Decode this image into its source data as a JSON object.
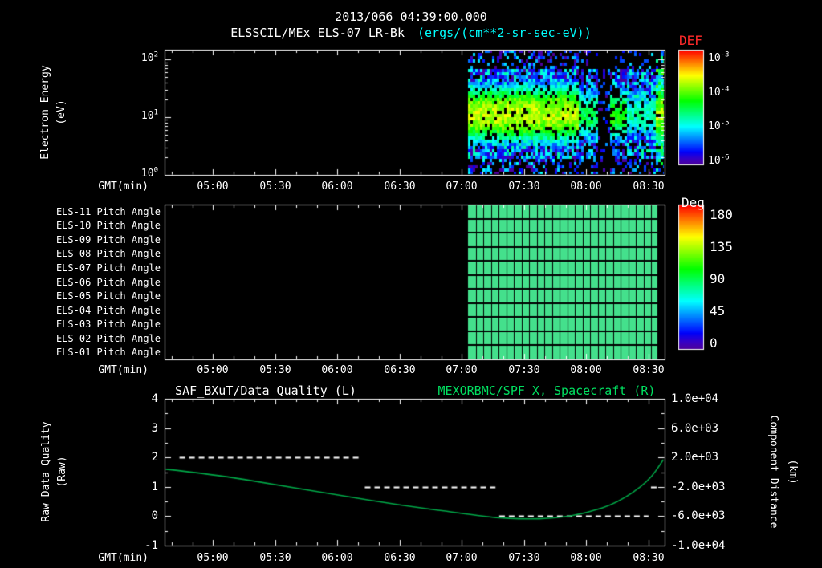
{
  "header": {
    "title": "2013/066 04:39:00.000",
    "instrument": "ELSSCIL/MEx ELS-07 LR-Bk",
    "units": "(ergs/(cm**2-sr-sec-eV))"
  },
  "colors": {
    "background": "#000000",
    "foreground": "#ffffff",
    "units_text": "#00ffff",
    "def_label": "#ff2a2a",
    "right_title": "#00e060",
    "orbit_line": "#00a848",
    "quality_line": "#ffffff",
    "pitch_cell": "#44e08c"
  },
  "time_axis": {
    "label": "GMT(min)",
    "domain_hours": [
      4.61,
      8.63
    ],
    "ticks": [
      {
        "label": "05:00",
        "hour": 5.0
      },
      {
        "label": "05:30",
        "hour": 5.5
      },
      {
        "label": "06:00",
        "hour": 6.0
      },
      {
        "label": "06:30",
        "hour": 6.5
      },
      {
        "label": "07:00",
        "hour": 7.0
      },
      {
        "label": "07:30",
        "hour": 7.5
      },
      {
        "label": "08:00",
        "hour": 8.0
      },
      {
        "label": "08:30",
        "hour": 8.5
      }
    ]
  },
  "chart_data": [
    {
      "type": "heatmap",
      "name": "electron-energy-spectrogram",
      "ylabel": "Electron Energy",
      "ylabel_units": "(eV)",
      "y_scale": "log",
      "y_decades": [
        0,
        2.17
      ],
      "yticks": [
        {
          "label": "10^0",
          "log": 0
        },
        {
          "label": "10^1",
          "log": 1
        },
        {
          "label": "10^2",
          "log": 2
        }
      ],
      "colorbar": {
        "label": "DEF",
        "range_log": [
          -6,
          -3
        ],
        "ticks": [
          {
            "label": "10^-3",
            "log": -3
          },
          {
            "label": "10^-4",
            "log": -4
          },
          {
            "label": "10^-5",
            "log": -5
          },
          {
            "label": "10^-6",
            "log": -6
          }
        ]
      },
      "data_start_hour": 7.05,
      "band": {
        "center_log_ev": 1.05,
        "width_log": 0.45
      },
      "segments": [
        {
          "t0": 7.05,
          "t1": 7.93,
          "band_peak_log": -3.85,
          "bg_log": -5.35,
          "fill": 0.95
        },
        {
          "t0": 7.93,
          "t1": 8.1,
          "band_peak_log": -4.55,
          "bg_log": -5.5,
          "fill": 0.8
        },
        {
          "t0": 8.1,
          "t1": 8.2,
          "band_peak_log": -6.3,
          "bg_log": -5.9,
          "fill": 0.3
        },
        {
          "t0": 8.2,
          "t1": 8.33,
          "band_peak_log": -4.3,
          "bg_log": -5.55,
          "fill": 0.7
        },
        {
          "t0": 8.33,
          "t1": 8.55,
          "band_peak_log": -4.8,
          "bg_log": -5.35,
          "fill": 0.85
        },
        {
          "t0": 8.55,
          "t1": 8.63,
          "band_peak_log": -3.9,
          "bg_log": -4.7,
          "fill": 1.0
        }
      ]
    },
    {
      "type": "heatmap",
      "name": "pitch-angle-panel",
      "rows": [
        "ELS-11 Pitch Angle",
        "ELS-10 Pitch Angle",
        "ELS-09 Pitch Angle",
        "ELS-08 Pitch Angle",
        "ELS-07 Pitch Angle",
        "ELS-06 Pitch Angle",
        "ELS-05 Pitch Angle",
        "ELS-04 Pitch Angle",
        "ELS-03 Pitch Angle",
        "ELS-02 Pitch Angle",
        "ELS-01 Pitch Angle"
      ],
      "value_deg": 95,
      "data_start_hour": 7.05,
      "data_end_hour": 8.57,
      "colorbar": {
        "label": "Deg",
        "range": [
          0,
          180
        ],
        "ticks": [
          {
            "label": "180",
            "v": 180
          },
          {
            "label": "135",
            "v": 135
          },
          {
            "label": "90",
            "v": 90
          },
          {
            "label": "45",
            "v": 45
          },
          {
            "label": "0",
            "v": 0
          }
        ]
      }
    },
    {
      "type": "line",
      "name": "quality-and-orbit",
      "title_left": "SAF_BXuT/Data Quality (L)",
      "title_right": "MEXORBMC/SPF X, Spacecraft (R)",
      "ylabel_left": "Raw Data Quality",
      "ylabel_left_units": "(Raw)",
      "ylabel_right": "Component Distance",
      "ylabel_right_units": "(km)",
      "ylim_left": [
        -1,
        4
      ],
      "ylim_right": [
        -10000,
        10000
      ],
      "yticks_left": [
        {
          "label": "4",
          "v": 4
        },
        {
          "label": "3",
          "v": 3
        },
        {
          "label": "2",
          "v": 2
        },
        {
          "label": "1",
          "v": 1
        },
        {
          "label": "0",
          "v": 0
        },
        {
          "label": "-1",
          "v": -1
        }
      ],
      "yticks_right": [
        {
          "label": "1.0e+04",
          "v": 10000
        },
        {
          "label": "6.0e+03",
          "v": 6000
        },
        {
          "label": "2.0e+03",
          "v": 2000
        },
        {
          "label": "-2.0e+03",
          "v": -2000
        },
        {
          "label": "-6.0e+03",
          "v": -6000
        },
        {
          "label": "-1.0e+04",
          "v": -10000
        }
      ],
      "quality_segments": [
        {
          "level": 2,
          "t0": 4.73,
          "t1": 6.17
        },
        {
          "level": 1,
          "t0": 6.22,
          "t1": 7.27
        },
        {
          "level": 0,
          "t0": 7.3,
          "t1": 8.5
        },
        {
          "level": 1,
          "t0": 8.52,
          "t1": 8.6
        }
      ],
      "spacecraft_x": {
        "hours": [
          4.62,
          5.0,
          5.5,
          6.0,
          6.5,
          7.0,
          7.25,
          7.5,
          7.75,
          8.0,
          8.25,
          8.5,
          8.62
        ],
        "km": [
          400,
          -300,
          -1700,
          -3100,
          -4500,
          -5600,
          -6200,
          -6400,
          -6300,
          -5600,
          -4200,
          -1300,
          1700
        ]
      }
    }
  ]
}
